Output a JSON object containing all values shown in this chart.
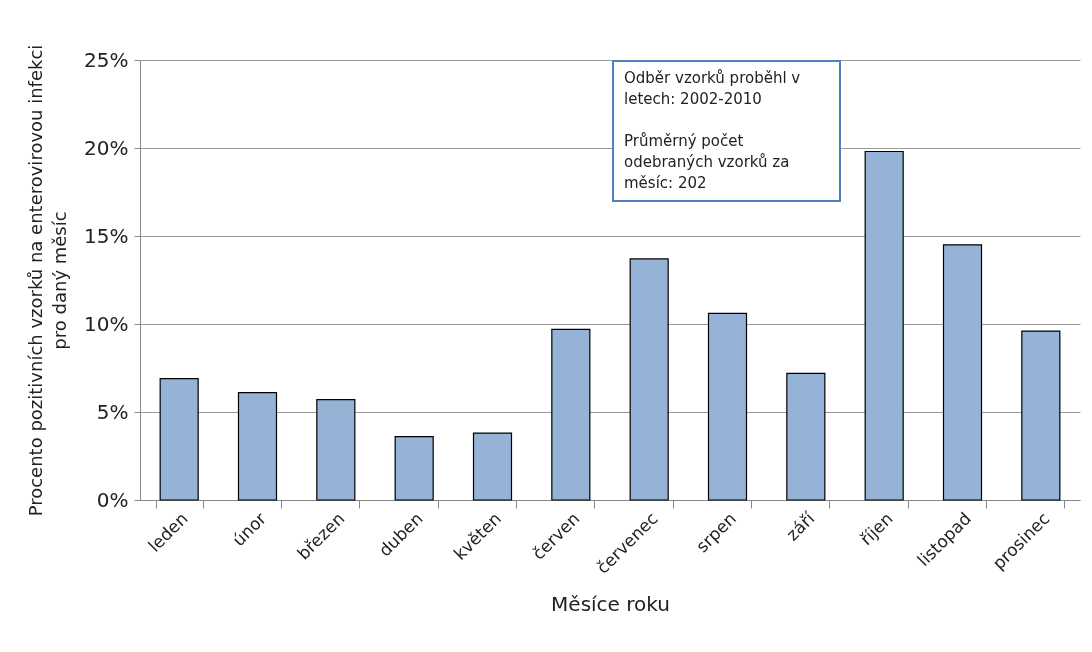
{
  "chart_data": {
    "type": "bar",
    "xlabel": "Měsíce roku",
    "ylabel": "Procento pozitivních vzorků na enterovirovou infekci\npro daný měsíc",
    "categories": [
      "leden",
      "únor",
      "březen",
      "duben",
      "květen",
      "červen",
      "červenec",
      "srpen",
      "září",
      "říjen",
      "listopad",
      "prosinec"
    ],
    "values": [
      6.9,
      6.1,
      5.7,
      3.6,
      3.8,
      9.7,
      13.7,
      10.6,
      7.2,
      19.8,
      14.5,
      9.6
    ],
    "color": "#95b3d7",
    "ylim": [
      0,
      25
    ],
    "yticks": [
      {
        "value": 0,
        "label": "0%"
      },
      {
        "value": 5,
        "label": "5%"
      },
      {
        "value": 10,
        "label": "10%"
      },
      {
        "value": 15,
        "label": "15%"
      },
      {
        "value": 20,
        "label": "20%"
      },
      {
        "value": 25,
        "label": "25%"
      }
    ],
    "grid": "y",
    "annotations": [
      "Odběr vzorků proběhl v letech: 2002-2010",
      "Průměrný počet odebraných vzorků za měsíc: 202"
    ]
  }
}
